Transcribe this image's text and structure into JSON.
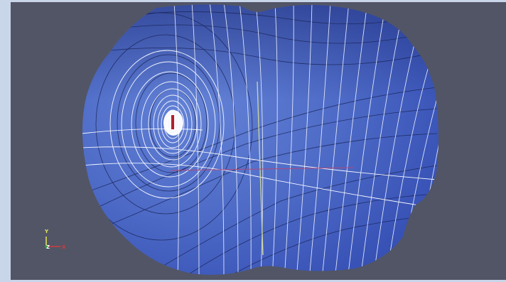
{
  "viewer": {
    "background_color": "#525566",
    "frame_color": "#c9d6ea",
    "surface_color": "#4f6fc8",
    "isoline_white_color": "#eef2ff",
    "isoline_dark_color": "#1a2456",
    "source_marker_color": "#b0202a",
    "probe_line_color": "#c9d29a",
    "slice_line_color": "#b04a7a"
  },
  "orientation_axes": {
    "y_label": "Y",
    "z_label": "Z",
    "x_label": "X",
    "y_color": "#e6e65a",
    "z_color": "#2d9a3a",
    "x_color": "#d23b3b"
  },
  "icons": {
    "axes": "orientation-axes-icon",
    "source": "source-marker-icon"
  }
}
